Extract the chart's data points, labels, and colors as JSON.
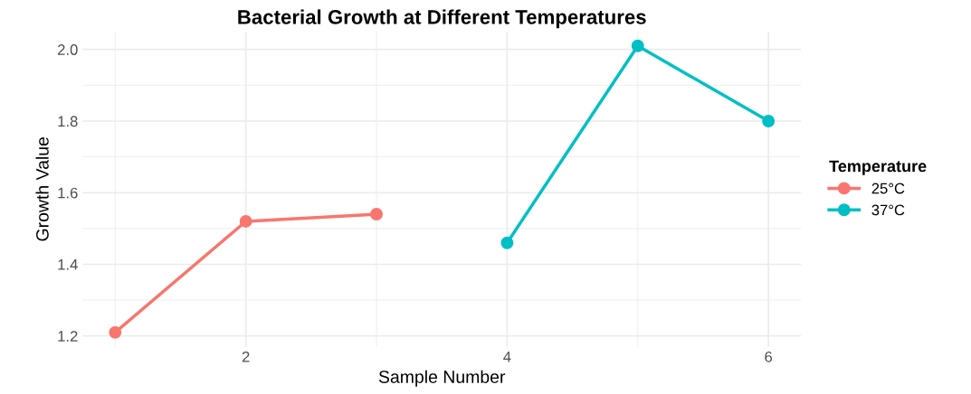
{
  "chart_data": {
    "type": "line",
    "title": "Bacterial Growth at Different Temperatures",
    "xlabel": "Sample Number",
    "ylabel": "Growth Value",
    "legend_title": "Temperature",
    "series": [
      {
        "name": "25°C",
        "color": "#f8766d",
        "x": [
          1,
          2,
          3
        ],
        "values": [
          1.21,
          1.52,
          1.54
        ]
      },
      {
        "name": "37°C",
        "color": "#00bfc4",
        "x": [
          4,
          5,
          6
        ],
        "values": [
          1.46,
          2.01,
          1.8
        ]
      }
    ],
    "xlim": [
      0.75,
      6.25
    ],
    "xticks": [
      2,
      4,
      6
    ],
    "ylim": [
      1.17,
      2.05
    ],
    "yticks": [
      1.2,
      1.4,
      1.6,
      1.8,
      {
        "value": 2,
        "label": "2.0"
      }
    ],
    "grid": true,
    "legend": "right",
    "marker": "circle",
    "line_style": "solid"
  }
}
